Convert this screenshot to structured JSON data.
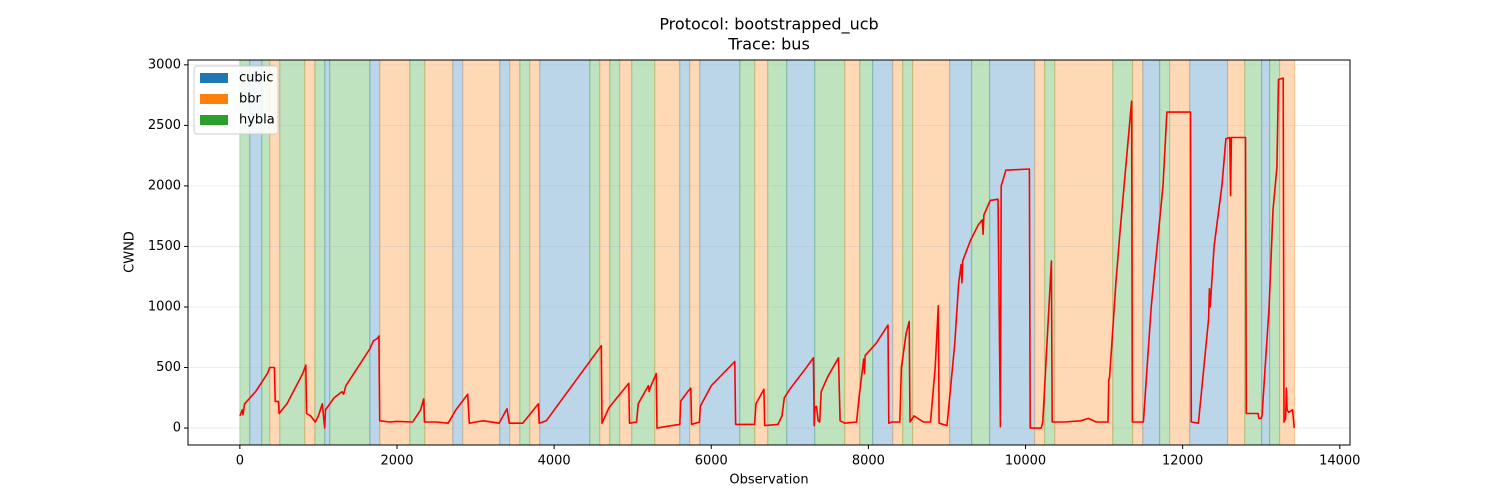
{
  "chart_data": {
    "type": "line",
    "title": "Protocol: bootstrapped_ucb",
    "subtitle": "Trace: bus",
    "xlabel": "Observation",
    "ylabel": "CWND",
    "xlim": [
      -660,
      14130
    ],
    "ylim": [
      -140,
      3040
    ],
    "xticks": [
      0,
      2000,
      4000,
      6000,
      8000,
      10000,
      12000,
      14000
    ],
    "yticks": [
      0,
      500,
      1000,
      1500,
      2000,
      2500,
      3000
    ],
    "grid": true,
    "legend": "upper left",
    "series": [
      {
        "name": "cubic",
        "color": "#1f77b4"
      },
      {
        "name": "bbr",
        "color": "#ff7f0e"
      },
      {
        "name": "hybla",
        "color": "#2ca02c"
      }
    ],
    "spans": {
      "edges": [
        0,
        127,
        280,
        382,
        509,
        827,
        955,
        1082,
        1145,
        1655,
        1782,
        2164,
        2355,
        2711,
        2838,
        3309,
        3436,
        3564,
        3691,
        3818,
        4455,
        4582,
        4709,
        4836,
        4989,
        5282,
        5600,
        5727,
        5855,
        6364,
        6555,
        6720,
        6962,
        7318,
        7700,
        7891,
        8056,
        8311,
        8438,
        8565,
        9036,
        9316,
        9545,
        10118,
        10245,
        10373,
        11111,
        11365,
        11493,
        11709,
        11836,
        12091,
        12574,
        12791,
        13007,
        13109,
        13236,
        13427
      ],
      "protocols": [
        2,
        0,
        2,
        1,
        2,
        1,
        2,
        0,
        2,
        0,
        1,
        2,
        1,
        0,
        1,
        0,
        1,
        2,
        1,
        0,
        2,
        1,
        2,
        1,
        2,
        1,
        0,
        1,
        0,
        2,
        1,
        2,
        0,
        2,
        1,
        2,
        0,
        1,
        2,
        1,
        0,
        2,
        0,
        1,
        2,
        1,
        2,
        1,
        0,
        2,
        1,
        0,
        1,
        2,
        0,
        2,
        1
      ]
    },
    "line": {
      "color": "#ff0000",
      "x": [
        0,
        30,
        40,
        60,
        200,
        350,
        380,
        440,
        450,
        490,
        500,
        600,
        800,
        840,
        850,
        900,
        960,
        1000,
        1050,
        1080,
        1090,
        1200,
        1300,
        1320,
        1350,
        1600,
        1650,
        1700,
        1750,
        1770,
        1780,
        1900,
        2000,
        2200,
        2300,
        2340,
        2350,
        2500,
        2650,
        2750,
        2900,
        2920,
        3000,
        3100,
        3300,
        3400,
        3430,
        3600,
        3700,
        3800,
        3810,
        3900,
        4600,
        4610,
        4700,
        4950,
        4960,
        5050,
        5070,
        5200,
        5210,
        5220,
        5300,
        5310,
        5400,
        5500,
        5600,
        5610,
        5700,
        5740,
        5750,
        5800,
        5850,
        5860,
        6000,
        6300,
        6310,
        6550,
        6570,
        6670,
        6680,
        6850,
        6900,
        6930,
        7000,
        7200,
        7300,
        7310,
        7320,
        7340,
        7360,
        7380,
        7400,
        7480,
        7620,
        7640,
        7700,
        7850,
        7880,
        7940,
        7950,
        7960,
        8100,
        8250,
        8260,
        8300,
        8400,
        8420,
        8480,
        8520,
        8530,
        8580,
        8700,
        8790,
        8850,
        8890,
        8900,
        9000,
        9100,
        9150,
        9180,
        9190,
        9200,
        9300,
        9400,
        9450,
        9460,
        9470,
        9550,
        9650,
        9680,
        9690,
        9750,
        10050,
        10060,
        10200,
        10220,
        10330,
        10340,
        10500,
        10700,
        10800,
        10900,
        11050,
        11060,
        11070,
        11150,
        11200,
        11350,
        11360,
        11500,
        11600,
        11750,
        11800,
        12100,
        12110,
        12200,
        12330,
        12340,
        12350,
        12400,
        12500,
        12550,
        12600,
        12610,
        12620,
        12800,
        12810,
        12960,
        12970,
        13000,
        13010,
        13100,
        13150,
        13200,
        13220,
        13280,
        13290,
        13310,
        13320,
        13330,
        13350,
        13400,
        13420
      ],
      "y": [
        100,
        150,
        110,
        200,
        300,
        450,
        500,
        500,
        220,
        220,
        120,
        200,
        450,
        520,
        120,
        100,
        50,
        100,
        200,
        0,
        150,
        250,
        300,
        280,
        350,
        600,
        650,
        720,
        740,
        760,
        60,
        50,
        55,
        50,
        150,
        240,
        50,
        50,
        40,
        150,
        280,
        40,
        50,
        60,
        40,
        160,
        40,
        40,
        120,
        200,
        40,
        60,
        680,
        40,
        170,
        370,
        40,
        50,
        200,
        350,
        300,
        330,
        450,
        0,
        10,
        20,
        30,
        220,
        300,
        330,
        30,
        40,
        50,
        180,
        350,
        550,
        30,
        30,
        200,
        320,
        20,
        30,
        100,
        250,
        320,
        490,
        580,
        20,
        170,
        180,
        60,
        50,
        300,
        420,
        580,
        60,
        40,
        50,
        250,
        570,
        450,
        600,
        700,
        850,
        40,
        50,
        50,
        500,
        780,
        880,
        50,
        100,
        50,
        50,
        500,
        1010,
        40,
        20,
        700,
        1200,
        1350,
        1200,
        1380,
        1550,
        1680,
        1720,
        1600,
        1760,
        1880,
        1890,
        10,
        2000,
        2130,
        2140,
        0,
        0,
        50,
        1380,
        50,
        50,
        60,
        80,
        50,
        50,
        400,
        420,
        1200,
        1600,
        2700,
        50,
        50,
        1000,
        2000,
        2610,
        2610,
        50,
        40,
        900,
        1150,
        1000,
        1500,
        2000,
        2390,
        2400,
        1920,
        2400,
        2400,
        120,
        120,
        80,
        80,
        100,
        1000,
        1800,
        2150,
        2880,
        2890,
        50,
        80,
        330,
        150,
        130,
        150,
        0
      ]
    }
  }
}
